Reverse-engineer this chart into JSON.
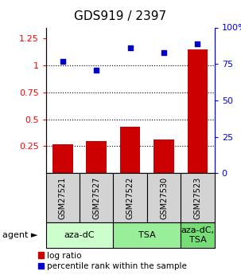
{
  "title": "GDS919 / 2397",
  "samples": [
    "GSM27521",
    "GSM27527",
    "GSM27522",
    "GSM27530",
    "GSM27523"
  ],
  "log_ratio": [
    0.27,
    0.3,
    0.43,
    0.31,
    1.15
  ],
  "percentile_rank": [
    0.77,
    0.71,
    0.86,
    0.83,
    0.89
  ],
  "bar_color": "#cc0000",
  "dot_color": "#0000cc",
  "ylim_left": [
    0.0,
    1.35
  ],
  "ylim_right": [
    0.0,
    1.0
  ],
  "yticks_left": [
    0.25,
    0.5,
    0.75,
    1.0,
    1.25
  ],
  "ytick_labels_left": [
    "0.25",
    "0.5",
    "0.75",
    "1",
    "1.25"
  ],
  "yticks_right": [
    0.0,
    0.25,
    0.5,
    0.75,
    1.0
  ],
  "ytick_labels_right": [
    "0",
    "25",
    "50",
    "75",
    "100%"
  ],
  "hlines": [
    0.25,
    0.5,
    0.75,
    1.0
  ],
  "agent_groups": [
    {
      "label": "aza-dC",
      "span": [
        0,
        2
      ],
      "color": "#ccffcc"
    },
    {
      "label": "TSA",
      "span": [
        2,
        4
      ],
      "color": "#99ee99"
    },
    {
      "label": "aza-dC,\nTSA",
      "span": [
        4,
        5
      ],
      "color": "#77dd77"
    }
  ],
  "legend_bar_label": "log ratio",
  "legend_dot_label": "percentile rank within the sample",
  "title_fontsize": 11,
  "axis_fontsize": 8,
  "tick_fontsize": 8,
  "legend_fontsize": 7.5,
  "sample_fontsize": 7,
  "agent_fontsize": 8
}
